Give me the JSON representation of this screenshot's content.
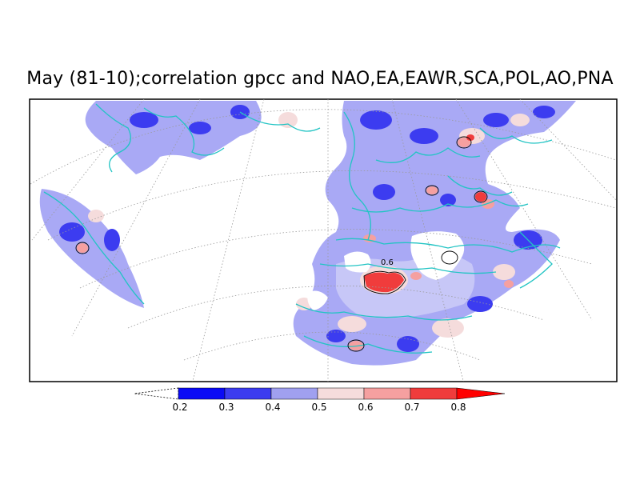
{
  "title": "May (81-10);correlation gpcc and NAO,EA,EAWR,SCA,POL,AO,PNA",
  "map": {
    "projection": "polar-stereographic sector",
    "contour_label": "0.6",
    "colors": {
      "land_base": "#a9a9f5",
      "coastline": "#23c4c4",
      "graticule": "#9a9a9a",
      "contour": "#000000"
    }
  },
  "colorbar": {
    "levels": [
      "0.2",
      "0.3",
      "0.4",
      "0.5",
      "0.6",
      "0.7",
      "0.8"
    ],
    "colors": [
      "#0a0af5",
      "#3c3cf0",
      "#a0a0f0",
      "#f5dcdc",
      "#f5a0a0",
      "#f03c3c",
      "#ff0000"
    ],
    "below_color": "#ffffff"
  }
}
